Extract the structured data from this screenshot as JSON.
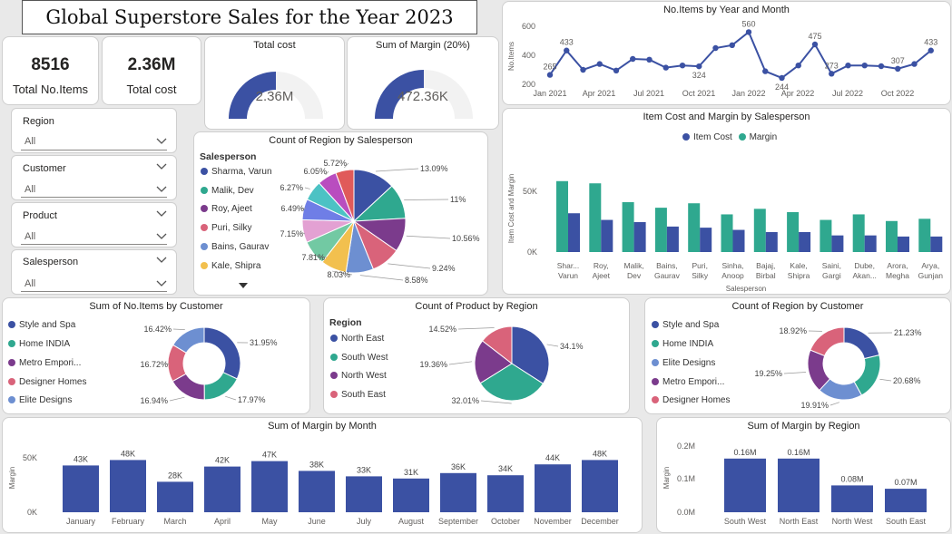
{
  "header": {
    "title": "Global Superstore Sales for the Year 2023"
  },
  "kpis": {
    "items": {
      "value": "8516",
      "label": "Total No.Items"
    },
    "cost": {
      "value": "2.36M",
      "label": "Total cost"
    }
  },
  "gauges": {
    "cost": {
      "title": "Total cost",
      "value_label": "2.36M",
      "fraction": 0.5
    },
    "margin": {
      "title": "Sum of Margin (20%)",
      "value_label": "472.36K",
      "fraction": 0.5
    }
  },
  "slicers": [
    {
      "label": "Region",
      "value": "All"
    },
    {
      "label": "Customer",
      "value": "All"
    },
    {
      "label": "Product",
      "value": "All"
    },
    {
      "label": "Salesperson",
      "value": "All"
    }
  ],
  "colors": {
    "blue": "#3b51a3",
    "teal": "#2fa88f",
    "purple": "#7b3b8c",
    "pink": "#d9637a",
    "lightblue": "#6d8fd1",
    "yellow": "#f2c04e",
    "peach": "#f0a07a",
    "green": "#72c9a3",
    "lilac": "#e3a1d3",
    "violet": "#6f7ee6",
    "cyan": "#4cc2c4",
    "magenta": "#b94dbf",
    "red": "#e05a5a",
    "gray": "#f2f2f2"
  },
  "charts": {
    "items_by_month": {
      "title": "No.Items by Year and Month",
      "ylabel": "No.Items",
      "y_ticks": [
        "600",
        "400",
        "200"
      ],
      "x_ticks": [
        "Jan 2021",
        "Apr 2021",
        "Jul 2021",
        "Oct 2021",
        "Jan 2022",
        "Apr 2022",
        "Jul 2022",
        "Oct 2022"
      ]
    },
    "cost_margin": {
      "title": "Item Cost and Margin by Salesperson",
      "ylabel": "Item Cost and Margin",
      "xlabel": "Salesperson",
      "legend": [
        "Item Cost",
        "Margin"
      ],
      "y_ticks": [
        "50K",
        "0K"
      ]
    },
    "region_by_salesperson": {
      "title": "Count of Region by Salesperson",
      "legend_title": "Salesperson",
      "legend_items": [
        "Sharma, Varun",
        "Malik, Dev",
        "Roy, Ajeet",
        "Puri, Silky",
        "Bains, Gaurav",
        "Kale, Shipra"
      ]
    },
    "items_by_customer": {
      "title": "Sum of No.Items by Customer",
      "legend_items": [
        "Style and Spa",
        "Home INDIA",
        "Metro Empori...",
        "Designer Homes",
        "Elite Designs"
      ]
    },
    "product_by_region": {
      "title": "Count of Product by Region",
      "legend_title": "Region",
      "legend_items": [
        "North East",
        "South West",
        "North West",
        "South East"
      ]
    },
    "region_by_customer": {
      "title": "Count of Region by Customer",
      "legend_items": [
        "Style and Spa",
        "Home INDIA",
        "Elite Designs",
        "Metro Empori...",
        "Designer Homes"
      ]
    },
    "margin_by_month": {
      "title": "Sum of Margin by Month",
      "ylabel": "Margin",
      "y_ticks": [
        "50K",
        "0K"
      ]
    },
    "margin_by_region": {
      "title": "Sum of Margin by Region",
      "ylabel": "Margin",
      "y_ticks": [
        "0.2M",
        "0.1M",
        "0.0M"
      ]
    }
  },
  "chart_data": [
    {
      "type": "line",
      "title": "No.Items by Year and Month",
      "ylabel": "No.Items",
      "ylim": [
        200,
        600
      ],
      "x": [
        "Jan 2021",
        "Feb 2021",
        "Mar 2021",
        "Apr 2021",
        "May 2021",
        "Jun 2021",
        "Jul 2021",
        "Aug 2021",
        "Sep 2021",
        "Oct 2021",
        "Nov 2021",
        "Dec 2021",
        "Jan 2022",
        "Feb 2022",
        "Mar 2022",
        "Apr 2022",
        "May 2022",
        "Jun 2022",
        "Jul 2022",
        "Aug 2022",
        "Sep 2022",
        "Oct 2022",
        "Nov 2022",
        "Dec 2022"
      ],
      "values": [
        265,
        433,
        300,
        340,
        295,
        375,
        370,
        315,
        330,
        324,
        450,
        470,
        560,
        290,
        244,
        330,
        475,
        273,
        330,
        330,
        325,
        307,
        340,
        433
      ],
      "data_labels": {
        "0": "265",
        "1": "433",
        "9": "324",
        "12": "560",
        "14": "244",
        "16": "475",
        "17": "273",
        "21": "307",
        "23": "433"
      }
    },
    {
      "type": "bar",
      "title": "Item Cost and Margin by Salesperson",
      "xlabel": "Salesperson",
      "ylabel": "Item Cost and Margin",
      "ylim": [
        0,
        90
      ],
      "categories": [
        [
          "Shar...",
          "Varun"
        ],
        [
          "Roy,",
          "Ajeet"
        ],
        [
          "Malik,",
          "Dev"
        ],
        [
          "Bains,",
          "Gaurav"
        ],
        [
          "Puri,",
          "Silky"
        ],
        [
          "Sinha,",
          "Anoop"
        ],
        [
          "Bajaj,",
          "Birbal"
        ],
        [
          "Kale,",
          "Shipra"
        ],
        [
          "Saini,",
          "Gargi"
        ],
        [
          "Dube,",
          "Akan..."
        ],
        [
          "Arora,",
          "Megha"
        ],
        [
          "Arya,",
          "Gunjan"
        ]
      ],
      "series": [
        {
          "name": "Item Cost",
          "values": [
            35,
            29,
            27,
            23,
            22,
            20,
            18,
            18,
            15,
            15,
            14,
            14
          ]
        },
        {
          "name": "Margin",
          "values": [
            64,
            62,
            45,
            40,
            44,
            34,
            39,
            36,
            29,
            34,
            28,
            30
          ]
        }
      ]
    },
    {
      "type": "pie",
      "title": "Count of Region by Salesperson",
      "values": [
        13.09,
        11,
        10.56,
        9.24,
        8.58,
        8.03,
        7.81,
        7.15,
        6.49,
        6.27,
        6.05,
        5.72
      ],
      "labels": [
        "13.09%",
        "11%",
        "10.56%",
        "9.24%",
        "8.58%",
        "8.03%",
        "7.81%",
        "7.15%",
        "6.49%",
        "6.27%",
        "6.05%",
        "5.72%"
      ],
      "colors": [
        "#3b51a3",
        "#2fa88f",
        "#7b3b8c",
        "#d9637a",
        "#6d8fd1",
        "#f2c04e",
        "#72c9a3",
        "#e3a1d3",
        "#6f7ee6",
        "#4cc2c4",
        "#b94dbf",
        "#e05a5a"
      ]
    },
    {
      "type": "pie",
      "title": "Sum of No.Items by Customer",
      "values": [
        31.95,
        17.97,
        16.94,
        16.72,
        16.42
      ],
      "labels": [
        "31.95%",
        "17.97%",
        "16.94%",
        "16.72%",
        "16.42%"
      ],
      "colors": [
        "#3b51a3",
        "#2fa88f",
        "#7b3b8c",
        "#d9637a",
        "#6d8fd1"
      ]
    },
    {
      "type": "pie",
      "title": "Count of Product by Region",
      "values": [
        34.1,
        32.01,
        19.36,
        14.52
      ],
      "labels": [
        "34.1%",
        "32.01%",
        "19.36%",
        "14.52%"
      ],
      "colors": [
        "#3b51a3",
        "#2fa88f",
        "#7b3b8c",
        "#d9637a"
      ]
    },
    {
      "type": "pie",
      "title": "Count of Region by Customer",
      "values": [
        21.23,
        20.68,
        19.91,
        19.25,
        18.92
      ],
      "labels": [
        "21.23%",
        "20.68%",
        "19.91%",
        "19.25%",
        "18.92%"
      ],
      "colors": [
        "#3b51a3",
        "#2fa88f",
        "#6d8fd1",
        "#7b3b8c",
        "#d9637a"
      ]
    },
    {
      "type": "bar",
      "title": "Sum of Margin by Month",
      "ylabel": "Margin",
      "ylim": [
        0,
        55
      ],
      "categories": [
        "January",
        "February",
        "March",
        "April",
        "May",
        "June",
        "July",
        "August",
        "September",
        "October",
        "November",
        "December"
      ],
      "values": [
        43,
        48,
        28,
        42,
        47,
        38,
        33,
        31,
        36,
        34,
        44,
        48
      ],
      "labels": [
        "43K",
        "48K",
        "28K",
        "42K",
        "47K",
        "38K",
        "33K",
        "31K",
        "36K",
        "34K",
        "44K",
        "48K"
      ]
    },
    {
      "type": "bar",
      "title": "Sum of Margin by Region",
      "ylabel": "Margin",
      "ylim": [
        0,
        0.2
      ],
      "categories": [
        "South West",
        "North East",
        "North West",
        "South East"
      ],
      "values": [
        0.16,
        0.16,
        0.08,
        0.07
      ],
      "labels": [
        "0.16M",
        "0.16M",
        "0.08M",
        "0.07M"
      ]
    }
  ]
}
